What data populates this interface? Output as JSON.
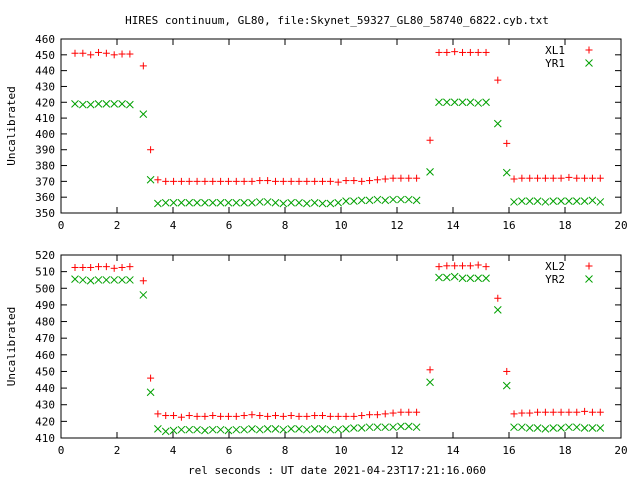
{
  "chart_data": [
    {
      "type": "scatter",
      "title": "HIRES continuum, GL80, file:Skynet_59327_GL80_58740_6822.cyb.txt",
      "xlabel": "",
      "ylabel": "Uncalibrated",
      "xlim": [
        0,
        20
      ],
      "ylim": [
        350,
        460
      ],
      "xticks": [
        0,
        2,
        4,
        6,
        8,
        10,
        12,
        14,
        16,
        18,
        20
      ],
      "yticks": [
        350,
        360,
        370,
        380,
        390,
        400,
        410,
        420,
        430,
        440,
        450,
        460
      ],
      "legend_position": "top-right",
      "grid": false,
      "series": [
        {
          "name": "XL1",
          "marker": "plus",
          "color": "#ff0000",
          "points": [
            [
              0.5,
              451
            ],
            [
              0.78,
              451
            ],
            [
              1.06,
              450
            ],
            [
              1.34,
              451.5
            ],
            [
              1.62,
              451
            ],
            [
              1.9,
              450
            ],
            [
              2.18,
              450.5
            ],
            [
              2.46,
              450.5
            ],
            [
              2.94,
              443
            ],
            [
              3.2,
              390
            ],
            [
              3.46,
              371
            ],
            [
              3.74,
              370
            ],
            [
              4.02,
              370
            ],
            [
              4.3,
              370
            ],
            [
              4.58,
              370
            ],
            [
              4.86,
              370
            ],
            [
              5.14,
              370
            ],
            [
              5.42,
              370
            ],
            [
              5.7,
              370
            ],
            [
              5.98,
              370
            ],
            [
              6.26,
              370
            ],
            [
              6.54,
              370
            ],
            [
              6.82,
              370
            ],
            [
              7.1,
              370.5
            ],
            [
              7.38,
              370.5
            ],
            [
              7.66,
              370
            ],
            [
              7.94,
              370
            ],
            [
              8.22,
              370
            ],
            [
              8.5,
              370
            ],
            [
              8.78,
              370
            ],
            [
              9.06,
              370
            ],
            [
              9.34,
              370
            ],
            [
              9.62,
              370
            ],
            [
              9.9,
              369.5
            ],
            [
              10.18,
              370.5
            ],
            [
              10.46,
              370.5
            ],
            [
              10.74,
              370
            ],
            [
              11.02,
              370.5
            ],
            [
              11.3,
              371
            ],
            [
              11.58,
              371.5
            ],
            [
              11.86,
              372
            ],
            [
              12.14,
              372
            ],
            [
              12.42,
              372
            ],
            [
              12.7,
              372
            ],
            [
              13.18,
              396
            ],
            [
              13.5,
              451.5
            ],
            [
              13.78,
              451.5
            ],
            [
              14.06,
              452
            ],
            [
              14.34,
              451.5
            ],
            [
              14.62,
              451.5
            ],
            [
              14.9,
              451.5
            ],
            [
              15.18,
              451.5
            ],
            [
              15.6,
              434
            ],
            [
              15.92,
              394
            ],
            [
              16.18,
              371.5
            ],
            [
              16.46,
              372
            ],
            [
              16.74,
              372
            ],
            [
              17.02,
              372
            ],
            [
              17.3,
              372
            ],
            [
              17.58,
              372
            ],
            [
              17.86,
              372
            ],
            [
              18.14,
              372.5
            ],
            [
              18.42,
              372
            ],
            [
              18.7,
              372
            ],
            [
              18.98,
              372
            ],
            [
              19.26,
              372
            ]
          ]
        },
        {
          "name": "YR1",
          "marker": "cross",
          "color": "#00a000",
          "points": [
            [
              0.5,
              419
            ],
            [
              0.78,
              418.5
            ],
            [
              1.06,
              418.5
            ],
            [
              1.34,
              419
            ],
            [
              1.62,
              419
            ],
            [
              1.9,
              419
            ],
            [
              2.18,
              419
            ],
            [
              2.46,
              418.5
            ],
            [
              2.94,
              412.5
            ],
            [
              3.2,
              371
            ],
            [
              3.46,
              356
            ],
            [
              3.74,
              356.5
            ],
            [
              4.02,
              356.5
            ],
            [
              4.3,
              356.5
            ],
            [
              4.58,
              356.5
            ],
            [
              4.86,
              356.5
            ],
            [
              5.14,
              356.5
            ],
            [
              5.42,
              356.5
            ],
            [
              5.7,
              356.5
            ],
            [
              5.98,
              356.5
            ],
            [
              6.26,
              356.5
            ],
            [
              6.54,
              356.5
            ],
            [
              6.82,
              356.5
            ],
            [
              7.1,
              357
            ],
            [
              7.38,
              357
            ],
            [
              7.66,
              356.5
            ],
            [
              7.94,
              356
            ],
            [
              8.22,
              356.5
            ],
            [
              8.5,
              356.5
            ],
            [
              8.78,
              356
            ],
            [
              9.06,
              356.5
            ],
            [
              9.34,
              356
            ],
            [
              9.62,
              356
            ],
            [
              9.9,
              356.5
            ],
            [
              10.18,
              357.5
            ],
            [
              10.46,
              357.5
            ],
            [
              10.74,
              358
            ],
            [
              11.02,
              358
            ],
            [
              11.3,
              358.5
            ],
            [
              11.58,
              358
            ],
            [
              11.86,
              358.5
            ],
            [
              12.14,
              358.5
            ],
            [
              12.42,
              358.5
            ],
            [
              12.7,
              358
            ],
            [
              13.18,
              376
            ],
            [
              13.5,
              420
            ],
            [
              13.78,
              420
            ],
            [
              14.06,
              420
            ],
            [
              14.34,
              420
            ],
            [
              14.62,
              420
            ],
            [
              14.9,
              419.5
            ],
            [
              15.18,
              420
            ],
            [
              15.6,
              406.5
            ],
            [
              15.92,
              375.5
            ],
            [
              16.18,
              357
            ],
            [
              16.46,
              357.5
            ],
            [
              16.74,
              357.5
            ],
            [
              17.02,
              357.5
            ],
            [
              17.3,
              357
            ],
            [
              17.58,
              357.5
            ],
            [
              17.86,
              357.5
            ],
            [
              18.14,
              357.5
            ],
            [
              18.42,
              357.5
            ],
            [
              18.7,
              357.5
            ],
            [
              18.98,
              358
            ],
            [
              19.26,
              357
            ]
          ]
        }
      ]
    },
    {
      "type": "scatter",
      "title": "",
      "xlabel": "rel seconds : UT date 2021-04-23T17:21:16.060",
      "ylabel": "Uncalibrated",
      "xlim": [
        0,
        20
      ],
      "ylim": [
        410,
        520
      ],
      "xticks": [
        0,
        2,
        4,
        6,
        8,
        10,
        12,
        14,
        16,
        18,
        20
      ],
      "yticks": [
        410,
        420,
        430,
        440,
        450,
        460,
        470,
        480,
        490,
        500,
        510,
        520
      ],
      "legend_position": "top-right",
      "grid": false,
      "series": [
        {
          "name": "XL2",
          "marker": "plus",
          "color": "#ff0000",
          "points": [
            [
              0.5,
              512.5
            ],
            [
              0.78,
              512.5
            ],
            [
              1.06,
              512.5
            ],
            [
              1.34,
              513
            ],
            [
              1.62,
              513
            ],
            [
              1.9,
              512
            ],
            [
              2.18,
              512.5
            ],
            [
              2.46,
              513
            ],
            [
              2.94,
              504.5
            ],
            [
              3.2,
              446
            ],
            [
              3.46,
              424.5
            ],
            [
              3.74,
              423.5
            ],
            [
              4.02,
              423.5
            ],
            [
              4.3,
              422.5
            ],
            [
              4.58,
              423.5
            ],
            [
              4.86,
              423
            ],
            [
              5.14,
              423
            ],
            [
              5.42,
              423.5
            ],
            [
              5.7,
              423
            ],
            [
              5.98,
              423
            ],
            [
              6.26,
              423
            ],
            [
              6.54,
              423.5
            ],
            [
              6.82,
              424
            ],
            [
              7.1,
              423.5
            ],
            [
              7.38,
              423
            ],
            [
              7.66,
              423.5
            ],
            [
              7.94,
              423
            ],
            [
              8.22,
              423.5
            ],
            [
              8.5,
              423
            ],
            [
              8.78,
              423
            ],
            [
              9.06,
              423.5
            ],
            [
              9.34,
              423.5
            ],
            [
              9.62,
              423
            ],
            [
              9.9,
              423
            ],
            [
              10.18,
              423
            ],
            [
              10.46,
              423
            ],
            [
              10.74,
              423.5
            ],
            [
              11.02,
              424
            ],
            [
              11.3,
              424
            ],
            [
              11.58,
              424.5
            ],
            [
              11.86,
              425
            ],
            [
              12.14,
              425.5
            ],
            [
              12.42,
              425.5
            ],
            [
              12.7,
              425.5
            ],
            [
              13.18,
              451
            ],
            [
              13.5,
              513
            ],
            [
              13.78,
              513.5
            ],
            [
              14.06,
              513.5
            ],
            [
              14.34,
              513.5
            ],
            [
              14.62,
              513.5
            ],
            [
              14.9,
              514
            ],
            [
              15.18,
              513
            ],
            [
              15.6,
              494
            ],
            [
              15.92,
              450
            ],
            [
              16.18,
              424.5
            ],
            [
              16.46,
              425
            ],
            [
              16.74,
              425
            ],
            [
              17.02,
              425.5
            ],
            [
              17.3,
              425.5
            ],
            [
              17.58,
              425.5
            ],
            [
              17.86,
              425.5
            ],
            [
              18.14,
              425.5
            ],
            [
              18.42,
              425.5
            ],
            [
              18.7,
              426
            ],
            [
              18.98,
              425.5
            ],
            [
              19.26,
              425.5
            ]
          ]
        },
        {
          "name": "YR2",
          "marker": "cross",
          "color": "#00a000",
          "points": [
            [
              0.5,
              505.5
            ],
            [
              0.78,
              505
            ],
            [
              1.06,
              504.5
            ],
            [
              1.34,
              505
            ],
            [
              1.62,
              505
            ],
            [
              1.9,
              505
            ],
            [
              2.18,
              505
            ],
            [
              2.46,
              505
            ],
            [
              2.94,
              496
            ],
            [
              3.2,
              437.5
            ],
            [
              3.46,
              415.5
            ],
            [
              3.74,
              414
            ],
            [
              4.02,
              414.5
            ],
            [
              4.3,
              415
            ],
            [
              4.58,
              415
            ],
            [
              4.86,
              415
            ],
            [
              5.14,
              414.5
            ],
            [
              5.42,
              415
            ],
            [
              5.7,
              415
            ],
            [
              5.98,
              414.5
            ],
            [
              6.26,
              415
            ],
            [
              6.54,
              415
            ],
            [
              6.82,
              415.5
            ],
            [
              7.1,
              415
            ],
            [
              7.38,
              415.5
            ],
            [
              7.66,
              415.5
            ],
            [
              7.94,
              415
            ],
            [
              8.22,
              415.5
            ],
            [
              8.5,
              415.5
            ],
            [
              8.78,
              415
            ],
            [
              9.06,
              415.5
            ],
            [
              9.34,
              415.5
            ],
            [
              9.62,
              415
            ],
            [
              9.9,
              415
            ],
            [
              10.18,
              415.5
            ],
            [
              10.46,
              416
            ],
            [
              10.74,
              416
            ],
            [
              11.02,
              416.5
            ],
            [
              11.3,
              416.5
            ],
            [
              11.58,
              416.5
            ],
            [
              11.86,
              416.5
            ],
            [
              12.14,
              417
            ],
            [
              12.42,
              417
            ],
            [
              12.7,
              416.5
            ],
            [
              13.18,
              443.5
            ],
            [
              13.5,
              506.5
            ],
            [
              13.78,
              506.5
            ],
            [
              14.06,
              507
            ],
            [
              14.34,
              506
            ],
            [
              14.62,
              506
            ],
            [
              14.9,
              506
            ],
            [
              15.18,
              506
            ],
            [
              15.6,
              487
            ],
            [
              15.92,
              441.5
            ],
            [
              16.18,
              416.5
            ],
            [
              16.46,
              416.5
            ],
            [
              16.74,
              416
            ],
            [
              17.02,
              416
            ],
            [
              17.3,
              415.5
            ],
            [
              17.58,
              416
            ],
            [
              17.86,
              416
            ],
            [
              18.14,
              416.5
            ],
            [
              18.42,
              416.5
            ],
            [
              18.7,
              416
            ],
            [
              18.98,
              416
            ],
            [
              19.26,
              416
            ]
          ]
        }
      ]
    }
  ]
}
